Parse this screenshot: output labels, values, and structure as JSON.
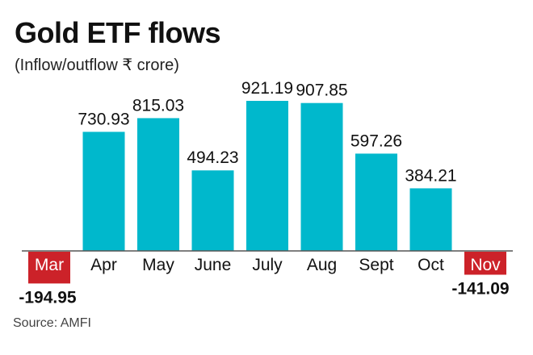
{
  "chart_data": {
    "type": "bar",
    "title": "Gold ETF flows",
    "subtitle": "(Inflow/outflow ₹ crore)",
    "source": "Source: AMFI",
    "categories": [
      "Mar",
      "Apr",
      "May",
      "June",
      "July",
      "Aug",
      "Sept",
      "Oct",
      "Nov"
    ],
    "values": [
      -194.95,
      730.93,
      815.03,
      494.23,
      921.19,
      907.85,
      597.26,
      384.21,
      -141.09
    ],
    "labels": [
      "-194.95",
      "730.93",
      "815.03",
      "494.23",
      "921.19",
      "907.85",
      "597.26",
      "384.21",
      "-141.09"
    ],
    "xlabel": "",
    "ylabel": "",
    "ylim": [
      -200,
      1000
    ],
    "grid": false,
    "colors": {
      "positive": "#00b8cc",
      "negative": "#cc2229",
      "axis": "#555555"
    }
  }
}
